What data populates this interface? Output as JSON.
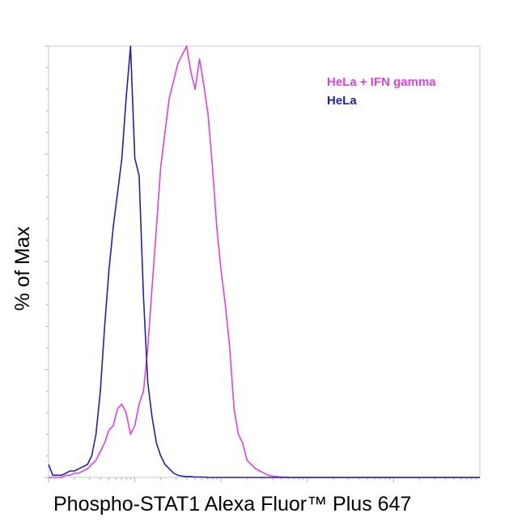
{
  "chart_data": {
    "type": "line",
    "title": "",
    "xlabel": "Phospho-STAT1 Alexa Fluor™ Plus 647",
    "ylabel": "% of Max",
    "ylim": [
      0,
      100
    ],
    "xlim": [
      0,
      100
    ],
    "grid": false,
    "legend_position": "top-right",
    "series": [
      {
        "name": "HeLa + IFN gamma",
        "color": "#e040e0",
        "x": [
          0,
          1,
          2,
          3,
          4,
          5,
          6,
          7,
          8,
          9,
          10,
          11,
          12,
          13,
          14,
          15,
          16,
          17,
          18,
          19,
          20,
          21,
          22,
          23,
          24,
          25,
          26,
          27,
          28,
          29,
          30,
          31,
          32,
          33,
          34,
          35,
          36,
          37,
          38,
          39,
          40,
          41,
          42,
          43,
          44,
          45,
          46,
          47,
          48,
          49,
          50,
          51,
          52,
          53,
          54,
          55,
          56,
          57,
          58,
          59,
          60,
          65,
          70,
          75,
          80,
          85,
          90,
          95,
          100
        ],
        "values": [
          0,
          0,
          0,
          0,
          0.5,
          0.5,
          1,
          1,
          1.5,
          2,
          3,
          4,
          6,
          8,
          11,
          12,
          16,
          17,
          15,
          10,
          12,
          17,
          20,
          30,
          44,
          58,
          72,
          80,
          88,
          92,
          96,
          98,
          100,
          94,
          90,
          97,
          91,
          84,
          72,
          58,
          48,
          40,
          30,
          16,
          10,
          8,
          4,
          3,
          2,
          1.5,
          1,
          0.5,
          0.3,
          0.2,
          0.1,
          0.1,
          0,
          0,
          0,
          0,
          0,
          0,
          0,
          0,
          0,
          0,
          0,
          0,
          0
        ]
      },
      {
        "name": "HeLa",
        "color": "#2020b0",
        "x": [
          0,
          1,
          2,
          3,
          4,
          5,
          6,
          7,
          8,
          9,
          10,
          11,
          12,
          13,
          14,
          15,
          16,
          17,
          18,
          19,
          20,
          21,
          22,
          23,
          24,
          25,
          26,
          27,
          28,
          29,
          30,
          31,
          32,
          33,
          34,
          35,
          36,
          37,
          38,
          39,
          40,
          45,
          50,
          55,
          60,
          70,
          80,
          90,
          100
        ],
        "values": [
          3,
          0.5,
          0.5,
          0.5,
          1,
          1.5,
          1.5,
          2,
          2.5,
          3,
          5,
          10,
          20,
          35,
          48,
          58,
          66,
          74,
          88,
          100,
          74,
          70,
          42,
          22,
          14,
          8,
          5,
          3,
          2,
          1,
          0.5,
          0.3,
          0.2,
          0.2,
          0.1,
          0.1,
          0.1,
          0,
          0,
          0,
          0,
          0,
          0,
          0,
          0,
          0,
          0,
          0,
          0
        ]
      }
    ]
  }
}
